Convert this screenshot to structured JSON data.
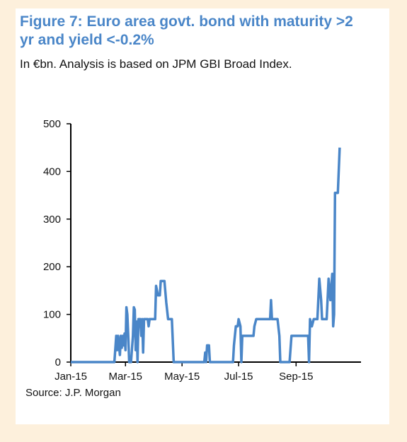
{
  "title": "Figure 7: Euro area govt. bond with maturity >2 yr and yield <-0.2%",
  "subtitle": "In €bn. Analysis is based on JPM GBI Broad Index.",
  "source": "Source:  J.P. Morgan",
  "colors": {
    "line": "#4a86c8",
    "title": "#4a86c8",
    "background": "#fdf0dc",
    "panel": "#ffffff"
  },
  "chart_data": {
    "type": "line",
    "title": "Figure 7: Euro area govt. bond with maturity >2 yr and yield <-0.2%",
    "xlabel": "",
    "ylabel": "",
    "ylim": [
      0,
      500
    ],
    "yticks": [
      0,
      100,
      200,
      300,
      400,
      500
    ],
    "xticks": [
      "Jan-15",
      "Mar-15",
      "May-15",
      "Jul-15",
      "Sep-15"
    ],
    "xlim": [
      "2015-01-01",
      "2015-11-10"
    ],
    "grid": false,
    "legend": "none",
    "series": [
      {
        "name": "",
        "points": [
          [
            "2015-01-01",
            0
          ],
          [
            "2015-02-17",
            0
          ],
          [
            "2015-02-19",
            55
          ],
          [
            "2015-02-20",
            25
          ],
          [
            "2015-02-21",
            55
          ],
          [
            "2015-02-23",
            15
          ],
          [
            "2015-02-24",
            55
          ],
          [
            "2015-02-25",
            30
          ],
          [
            "2015-02-26",
            55
          ],
          [
            "2015-02-27",
            35
          ],
          [
            "2015-02-28",
            60
          ],
          [
            "2015-03-01",
            25
          ],
          [
            "2015-03-02",
            115
          ],
          [
            "2015-03-03",
            100
          ],
          [
            "2015-03-04",
            55
          ],
          [
            "2015-03-05",
            0
          ],
          [
            "2015-03-07",
            0
          ],
          [
            "2015-03-09",
            55
          ],
          [
            "2015-03-10",
            115
          ],
          [
            "2015-03-11",
            110
          ],
          [
            "2015-03-12",
            25
          ],
          [
            "2015-03-13",
            85
          ],
          [
            "2015-03-14",
            0
          ],
          [
            "2015-03-15",
            90
          ],
          [
            "2015-03-17",
            90
          ],
          [
            "2015-03-18",
            55
          ],
          [
            "2015-03-19",
            90
          ],
          [
            "2015-03-20",
            20
          ],
          [
            "2015-03-21",
            90
          ],
          [
            "2015-03-25",
            90
          ],
          [
            "2015-03-26",
            75
          ],
          [
            "2015-03-27",
            90
          ],
          [
            "2015-04-02",
            90
          ],
          [
            "2015-04-03",
            160
          ],
          [
            "2015-04-05",
            140
          ],
          [
            "2015-04-07",
            140
          ],
          [
            "2015-04-08",
            170
          ],
          [
            "2015-04-12",
            170
          ],
          [
            "2015-04-14",
            125
          ],
          [
            "2015-04-16",
            90
          ],
          [
            "2015-04-20",
            90
          ],
          [
            "2015-04-22",
            0
          ],
          [
            "2015-05-25",
            0
          ],
          [
            "2015-05-26",
            20
          ],
          [
            "2015-05-27",
            0
          ],
          [
            "2015-05-28",
            35
          ],
          [
            "2015-05-30",
            35
          ],
          [
            "2015-05-31",
            0
          ],
          [
            "2015-06-25",
            0
          ],
          [
            "2015-06-26",
            35
          ],
          [
            "2015-06-28",
            75
          ],
          [
            "2015-06-30",
            75
          ],
          [
            "2015-07-01",
            90
          ],
          [
            "2015-07-03",
            75
          ],
          [
            "2015-07-04",
            0
          ],
          [
            "2015-07-05",
            55
          ],
          [
            "2015-07-17",
            55
          ],
          [
            "2015-07-18",
            75
          ],
          [
            "2015-07-20",
            90
          ],
          [
            "2015-08-04",
            90
          ],
          [
            "2015-08-05",
            130
          ],
          [
            "2015-08-06",
            90
          ],
          [
            "2015-08-12",
            90
          ],
          [
            "2015-08-14",
            55
          ],
          [
            "2015-08-15",
            0
          ],
          [
            "2015-08-25",
            0
          ],
          [
            "2015-08-27",
            55
          ],
          [
            "2015-09-14",
            55
          ],
          [
            "2015-09-15",
            0
          ],
          [
            "2015-09-16",
            90
          ],
          [
            "2015-09-18",
            75
          ],
          [
            "2015-09-20",
            90
          ],
          [
            "2015-09-24",
            90
          ],
          [
            "2015-09-26",
            175
          ],
          [
            "2015-09-28",
            130
          ],
          [
            "2015-09-29",
            90
          ],
          [
            "2015-10-04",
            90
          ],
          [
            "2015-10-06",
            175
          ],
          [
            "2015-10-08",
            130
          ],
          [
            "2015-10-10",
            185
          ],
          [
            "2015-10-11",
            75
          ],
          [
            "2015-10-12",
            100
          ],
          [
            "2015-10-13",
            355
          ],
          [
            "2015-10-16",
            355
          ],
          [
            "2015-10-18",
            450
          ]
        ]
      }
    ]
  }
}
